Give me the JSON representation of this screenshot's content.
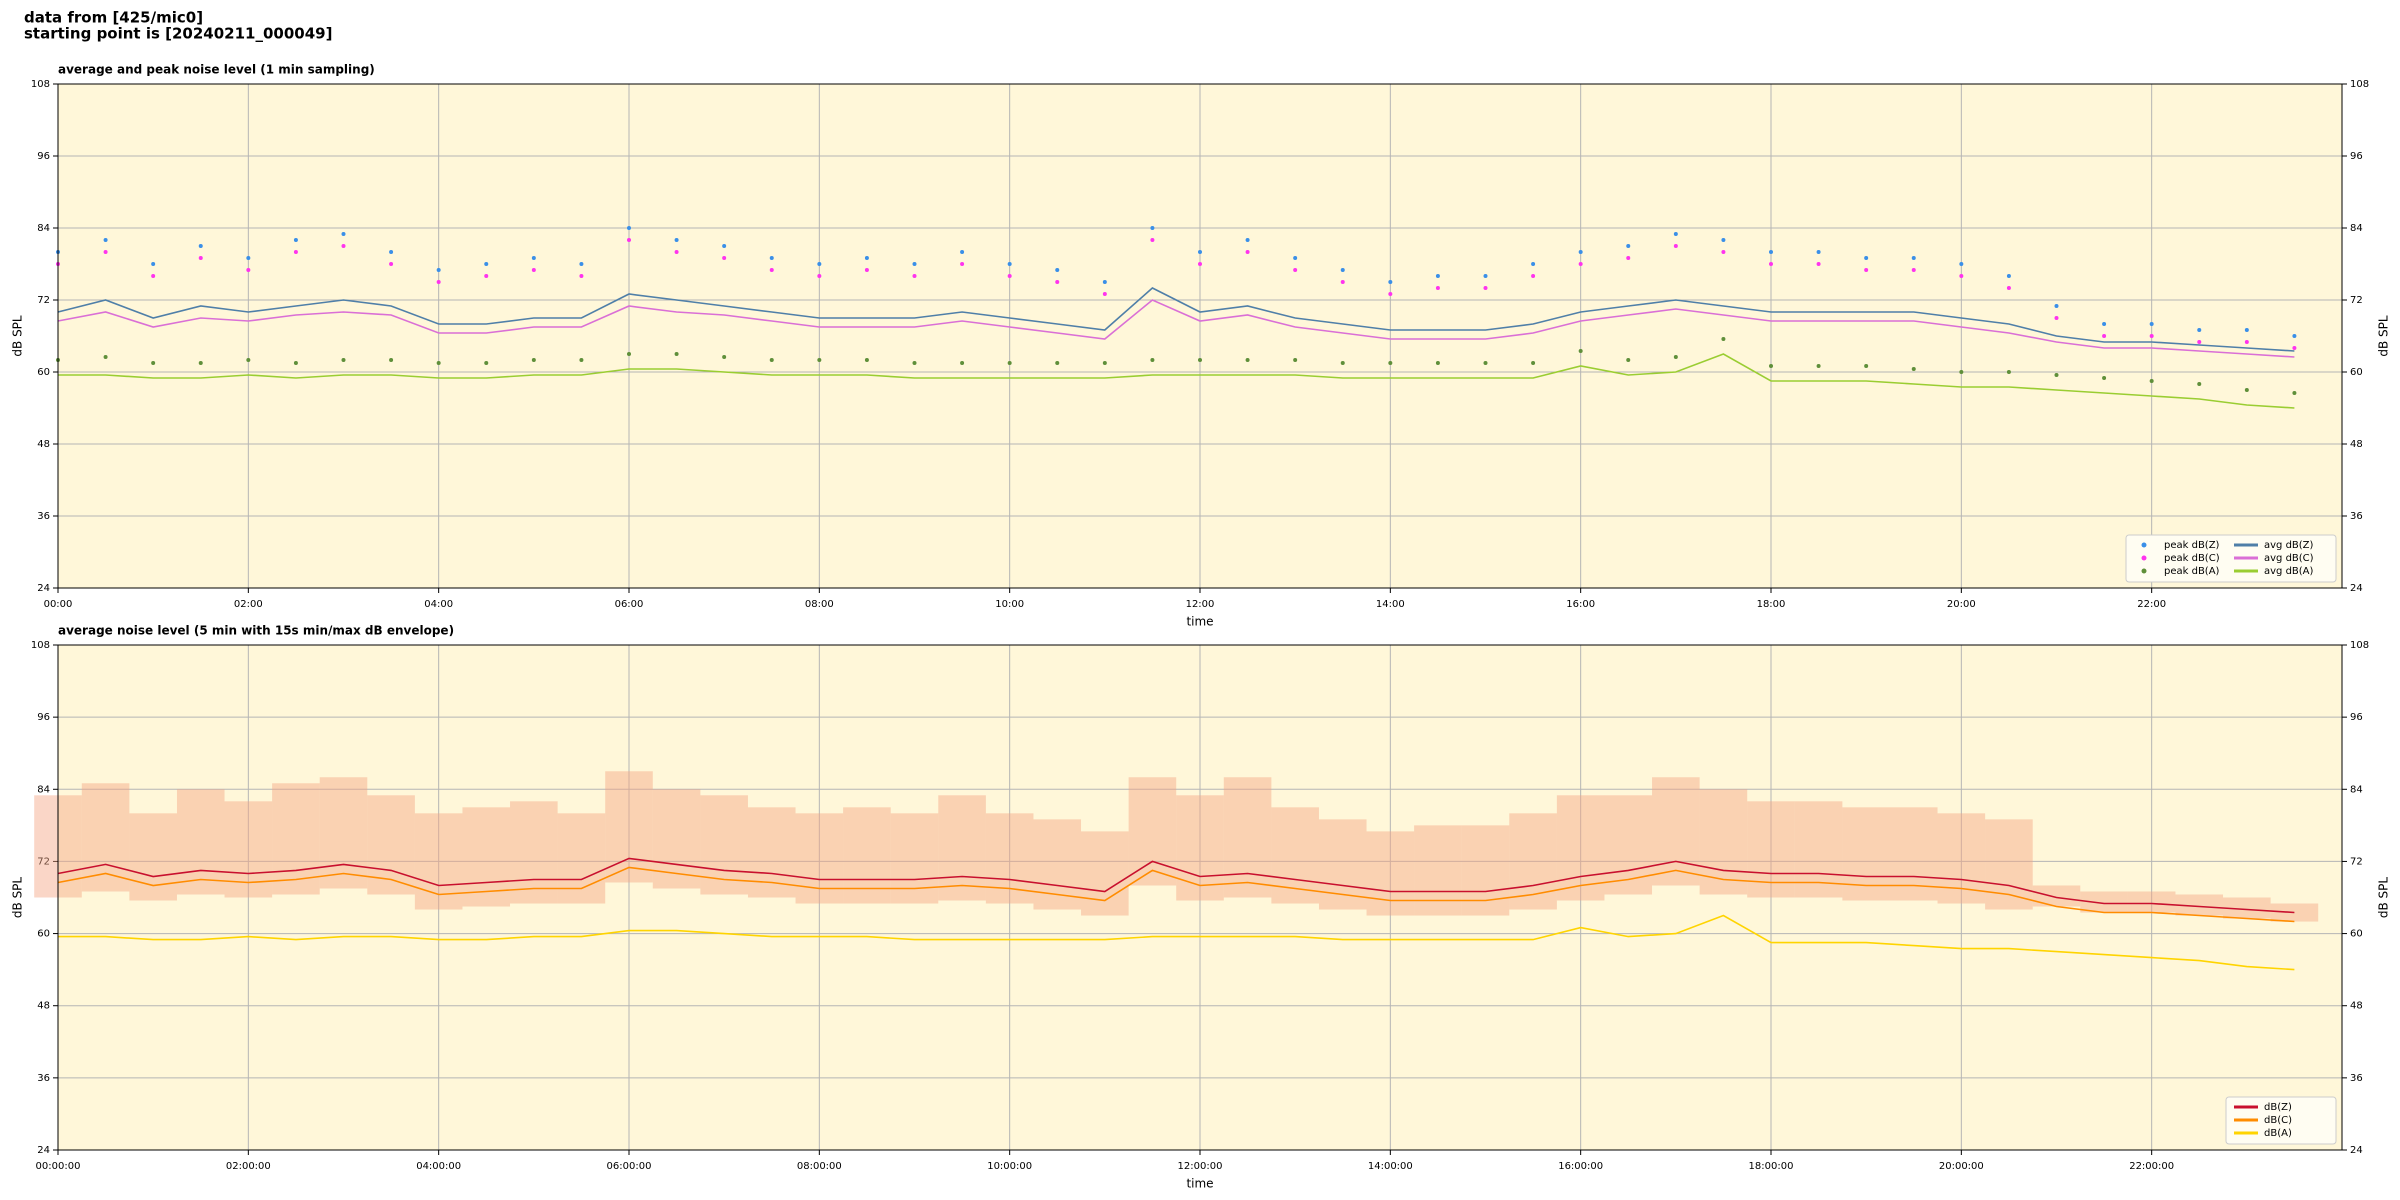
{
  "header": {
    "line1": "data from [425/mic0]",
    "line2": "starting point is [20240211_000049]"
  },
  "chart_data": [
    {
      "type": "line",
      "title": "average and peak noise level (1 min sampling)",
      "xlabel": "time",
      "ylabel": "dB SPL",
      "x": [
        0,
        0.5,
        1,
        1.5,
        2,
        2.5,
        3,
        3.5,
        4,
        4.5,
        5,
        5.5,
        6,
        6.5,
        7,
        7.5,
        8,
        8.5,
        9,
        9.5,
        10,
        10.5,
        11,
        11.5,
        12,
        12.5,
        13,
        13.5,
        14,
        14.5,
        15,
        15.5,
        16,
        16.5,
        17,
        17.5,
        18,
        18.5,
        19,
        19.5,
        20,
        20.5,
        21,
        21.5,
        22,
        22.5,
        23,
        23.5
      ],
      "xlim": [
        0,
        24
      ],
      "ylim": [
        24,
        108
      ],
      "yticks": [
        24,
        36,
        48,
        60,
        72,
        84,
        96,
        108
      ],
      "xticks": [
        {
          "value": 0,
          "label": "00:00"
        },
        {
          "value": 2,
          "label": "02:00"
        },
        {
          "value": 4,
          "label": "04:00"
        },
        {
          "value": 6,
          "label": "06:00"
        },
        {
          "value": 8,
          "label": "08:00"
        },
        {
          "value": 10,
          "label": "10:00"
        },
        {
          "value": 12,
          "label": "12:00"
        },
        {
          "value": 14,
          "label": "14:00"
        },
        {
          "value": 16,
          "label": "16:00"
        },
        {
          "value": 18,
          "label": "18:00"
        },
        {
          "value": 20,
          "label": "20:00"
        },
        {
          "value": 22,
          "label": "22:00"
        }
      ],
      "grid": true,
      "legend": "lower right",
      "legend_columns": 2,
      "series": [
        {
          "name": "peak dB(Z)",
          "type": "scatter",
          "color": "#3a8fe8",
          "values": [
            80,
            82,
            78,
            81,
            79,
            82,
            83,
            80,
            77,
            78,
            79,
            78,
            84,
            82,
            81,
            79,
            78,
            79,
            78,
            80,
            78,
            77,
            75,
            84,
            80,
            82,
            79,
            77,
            75,
            76,
            76,
            78,
            80,
            81,
            83,
            82,
            80,
            80,
            79,
            79,
            78,
            76,
            71,
            68,
            68,
            67,
            67,
            66
          ]
        },
        {
          "name": "peak dB(C)",
          "type": "scatter",
          "color": "#ff33ee",
          "values": [
            78,
            80,
            76,
            79,
            77,
            80,
            81,
            78,
            75,
            76,
            77,
            76,
            82,
            80,
            79,
            77,
            76,
            77,
            76,
            78,
            76,
            75,
            73,
            82,
            78,
            80,
            77,
            75,
            73,
            74,
            74,
            76,
            78,
            79,
            81,
            80,
            78,
            78,
            77,
            77,
            76,
            74,
            69,
            66,
            66,
            65,
            65,
            64
          ]
        },
        {
          "name": "peak dB(A)",
          "type": "scatter",
          "color": "#5f8f3a",
          "values": [
            62,
            62.5,
            61.5,
            61.5,
            62,
            61.5,
            62,
            62,
            61.5,
            61.5,
            62,
            62,
            63,
            63,
            62.5,
            62,
            62,
            62,
            61.5,
            61.5,
            61.5,
            61.5,
            61.5,
            62,
            62,
            62,
            62,
            61.5,
            61.5,
            61.5,
            61.5,
            61.5,
            63.5,
            62,
            62.5,
            65.5,
            61,
            61,
            61,
            60.5,
            60,
            60,
            59.5,
            59,
            58.5,
            58,
            57,
            56.5
          ]
        },
        {
          "name": "avg dB(Z)",
          "type": "line",
          "color": "#4f7fa8",
          "values": [
            70,
            72,
            69,
            71,
            70,
            71,
            72,
            71,
            68,
            68,
            69,
            69,
            73,
            72,
            71,
            70,
            69,
            69,
            69,
            70,
            69,
            68,
            67,
            74,
            70,
            71,
            69,
            68,
            67,
            67,
            67,
            68,
            70,
            71,
            72,
            71,
            70,
            70,
            70,
            70,
            69,
            68,
            66,
            65,
            65,
            64.5,
            64,
            63.5
          ]
        },
        {
          "name": "avg dB(C)",
          "type": "line",
          "color": "#da6fd6",
          "values": [
            68.5,
            70,
            67.5,
            69,
            68.5,
            69.5,
            70,
            69.5,
            66.5,
            66.5,
            67.5,
            67.5,
            71,
            70,
            69.5,
            68.5,
            67.5,
            67.5,
            67.5,
            68.5,
            67.5,
            66.5,
            65.5,
            72,
            68.5,
            69.5,
            67.5,
            66.5,
            65.5,
            65.5,
            65.5,
            66.5,
            68.5,
            69.5,
            70.5,
            69.5,
            68.5,
            68.5,
            68.5,
            68.5,
            67.5,
            66.5,
            65,
            64,
            64,
            63.5,
            63,
            62.5
          ]
        },
        {
          "name": "avg dB(A)",
          "type": "line",
          "color": "#9acd32",
          "values": [
            59.5,
            59.5,
            59,
            59,
            59.5,
            59,
            59.5,
            59.5,
            59,
            59,
            59.5,
            59.5,
            60.5,
            60.5,
            60,
            59.5,
            59.5,
            59.5,
            59,
            59,
            59,
            59,
            59,
            59.5,
            59.5,
            59.5,
            59.5,
            59,
            59,
            59,
            59,
            59,
            61,
            59.5,
            60,
            63,
            58.5,
            58.5,
            58.5,
            58,
            57.5,
            57.5,
            57,
            56.5,
            56,
            55.5,
            54.5,
            54
          ]
        }
      ]
    },
    {
      "type": "line",
      "title": "average noise level (5 min with 15s min/max dB envelope)",
      "xlabel": "time",
      "ylabel": "dB SPL",
      "x": [
        0,
        0.5,
        1,
        1.5,
        2,
        2.5,
        3,
        3.5,
        4,
        4.5,
        5,
        5.5,
        6,
        6.5,
        7,
        7.5,
        8,
        8.5,
        9,
        9.5,
        10,
        10.5,
        11,
        11.5,
        12,
        12.5,
        13,
        13.5,
        14,
        14.5,
        15,
        15.5,
        16,
        16.5,
        17,
        17.5,
        18,
        18.5,
        19,
        19.5,
        20,
        20.5,
        21,
        21.5,
        22,
        22.5,
        23,
        23.5
      ],
      "xlim": [
        0,
        24
      ],
      "ylim": [
        24,
        108
      ],
      "yticks": [
        24,
        36,
        48,
        60,
        72,
        84,
        96,
        108
      ],
      "xticks": [
        {
          "value": 0,
          "label": "00:00:00"
        },
        {
          "value": 2,
          "label": "02:00:00"
        },
        {
          "value": 4,
          "label": "04:00:00"
        },
        {
          "value": 6,
          "label": "06:00:00"
        },
        {
          "value": 8,
          "label": "08:00:00"
        },
        {
          "value": 10,
          "label": "10:00:00"
        },
        {
          "value": 12,
          "label": "12:00:00"
        },
        {
          "value": 14,
          "label": "14:00:00"
        },
        {
          "value": 16,
          "label": "16:00:00"
        },
        {
          "value": 18,
          "label": "18:00:00"
        },
        {
          "value": 20,
          "label": "20:00:00"
        },
        {
          "value": 22,
          "label": "22:00:00"
        }
      ],
      "grid": true,
      "legend": "lower right",
      "legend_columns": 1,
      "envelope": {
        "color": "#f4a582",
        "max": [
          83,
          85,
          80,
          84,
          82,
          85,
          86,
          83,
          80,
          81,
          82,
          80,
          87,
          84,
          83,
          81,
          80,
          81,
          80,
          83,
          80,
          79,
          77,
          86,
          83,
          86,
          81,
          79,
          77,
          78,
          78,
          80,
          83,
          83,
          86,
          84,
          82,
          82,
          81,
          81,
          80,
          79,
          68,
          67,
          67,
          66.5,
          66,
          65
        ],
        "min": [
          66,
          67,
          65.5,
          66.5,
          66,
          66.5,
          67.5,
          66.5,
          64,
          64.5,
          65,
          65,
          68.5,
          67.5,
          66.5,
          66,
          65,
          65,
          65,
          65.5,
          65,
          64,
          63,
          68,
          65.5,
          66,
          65,
          64,
          63,
          63,
          63,
          64,
          65.5,
          66.5,
          68,
          66.5,
          66,
          66,
          65.5,
          65.5,
          65,
          64,
          64.5,
          63.5,
          63.5,
          63,
          62.5,
          62
        ]
      },
      "series": [
        {
          "name": "dB(Z)",
          "type": "line",
          "color": "#c8102e",
          "values": [
            70,
            71.5,
            69.5,
            70.5,
            70,
            70.5,
            71.5,
            70.5,
            68,
            68.5,
            69,
            69,
            72.5,
            71.5,
            70.5,
            70,
            69,
            69,
            69,
            69.5,
            69,
            68,
            67,
            72,
            69.5,
            70,
            69,
            68,
            67,
            67,
            67,
            68,
            69.5,
            70.5,
            72,
            70.5,
            70,
            70,
            69.5,
            69.5,
            69,
            68,
            66,
            65,
            65,
            64.5,
            64,
            63.5
          ]
        },
        {
          "name": "dB(C)",
          "type": "line",
          "color": "#ff8c00",
          "values": [
            68.5,
            70,
            68,
            69,
            68.5,
            69,
            70,
            69,
            66.5,
            67,
            67.5,
            67.5,
            71,
            70,
            69,
            68.5,
            67.5,
            67.5,
            67.5,
            68,
            67.5,
            66.5,
            65.5,
            70.5,
            68,
            68.5,
            67.5,
            66.5,
            65.5,
            65.5,
            65.5,
            66.5,
            68,
            69,
            70.5,
            69,
            68.5,
            68.5,
            68,
            68,
            67.5,
            66.5,
            64.5,
            63.5,
            63.5,
            63,
            62.5,
            62
          ]
        },
        {
          "name": "dB(A)",
          "type": "line",
          "color": "#ffd400",
          "values": [
            59.5,
            59.5,
            59,
            59,
            59.5,
            59,
            59.5,
            59.5,
            59,
            59,
            59.5,
            59.5,
            60.5,
            60.5,
            60,
            59.5,
            59.5,
            59.5,
            59,
            59,
            59,
            59,
            59,
            59.5,
            59.5,
            59.5,
            59.5,
            59,
            59,
            59,
            59,
            59,
            61,
            59.5,
            60,
            63,
            58.5,
            58.5,
            58.5,
            58,
            57.5,
            57.5,
            57,
            56.5,
            56,
            55.5,
            54.5,
            54
          ]
        }
      ]
    }
  ]
}
